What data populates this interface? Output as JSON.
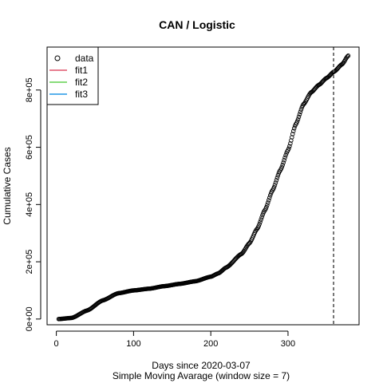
{
  "chart_data": {
    "type": "scatter",
    "title": "CAN / Logistic",
    "xlabel": "Days since 2020-03-07",
    "xlabel2": "Simple Moving Avarage (window size = 7)",
    "ylabel": "Cumulative Cases",
    "xlim": [
      -12,
      392
    ],
    "ylim": [
      -20000,
      950000
    ],
    "x_ticks": [
      0,
      100,
      200,
      300
    ],
    "x_tick_labels": [
      "0",
      "100",
      "200",
      "300"
    ],
    "y_ticks": [
      0,
      200000,
      400000,
      600000,
      800000
    ],
    "y_tick_labels": [
      "0e+00",
      "2e+05",
      "4e+05",
      "6e+05",
      "8e+05"
    ],
    "vline": 359,
    "legend": {
      "position": "top-left",
      "entries": [
        {
          "label": "data",
          "symbol": "circle",
          "color": "#000000"
        },
        {
          "label": "fit1",
          "symbol": "line",
          "color": "#DF536B"
        },
        {
          "label": "fit2",
          "symbol": "line",
          "color": "#61D04F"
        },
        {
          "label": "fit3",
          "symbol": "line",
          "color": "#2297E6"
        }
      ]
    },
    "series": [
      {
        "name": "data",
        "x": [
          3,
          20,
          40,
          60,
          80,
          100,
          120,
          140,
          160,
          180,
          200,
          210,
          220,
          240,
          250,
          260,
          270,
          280,
          290,
          300,
          310,
          320,
          330,
          340,
          350,
          360,
          370,
          378
        ],
        "y": [
          0,
          4000,
          30000,
          65000,
          90000,
          100000,
          106000,
          115000,
          123000,
          132000,
          148000,
          160000,
          180000,
          228000,
          265000,
          315000,
          380000,
          450000,
          520000,
          590000,
          680000,
          750000,
          792000,
          818000,
          842000,
          865000,
          890000,
          920000
        ]
      }
    ]
  }
}
